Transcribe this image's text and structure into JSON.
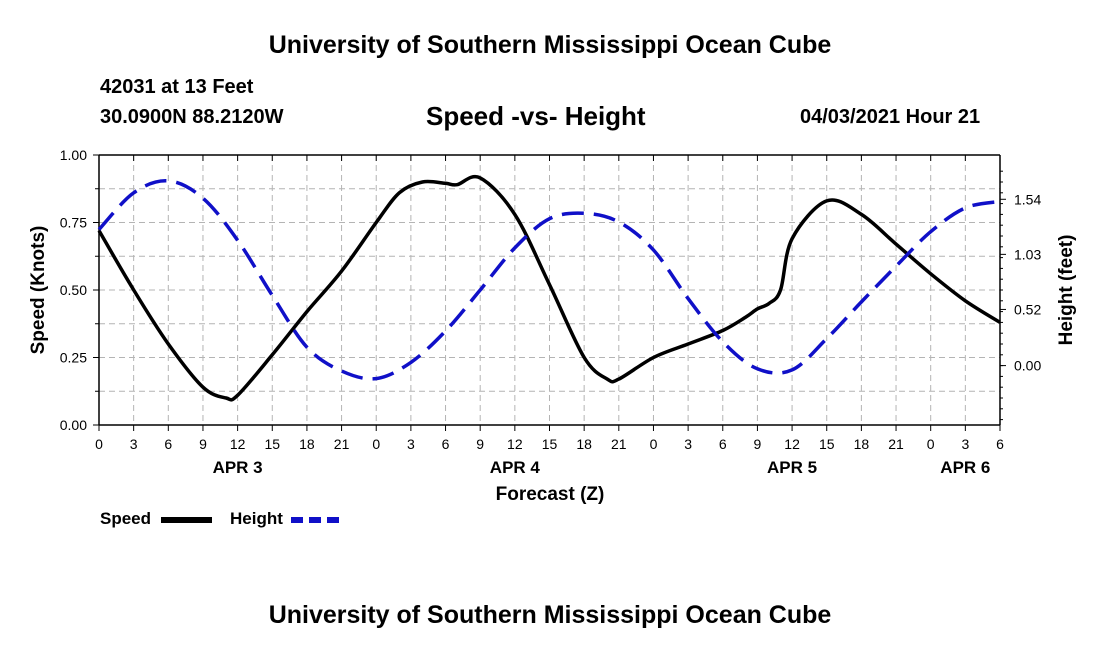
{
  "header": {
    "title": "University of Southern Mississippi Ocean Cube",
    "station": "42031 at 13 Feet",
    "coords": "30.0900N  88.2120W",
    "subtitle": "Speed -vs- Height",
    "datetime": "04/03/2021 Hour 21"
  },
  "footer": {
    "title": "University of Southern Mississippi Ocean Cube"
  },
  "legend": {
    "speed_label": "Speed",
    "height_label": "Height"
  },
  "colors": {
    "speed": "#000000",
    "height": "#1010c8",
    "grid": "#b4b4b4"
  },
  "chart_data": {
    "type": "line",
    "title": "Speed -vs- Height",
    "xlabel": "Forecast (Z)",
    "ylabel": "Speed (Knots)",
    "y2label": "Height (feet)",
    "x_unit": "hours from APR 3 00Z",
    "xlim": [
      0,
      78
    ],
    "ylim": [
      0,
      1.0
    ],
    "y2lim": [
      -0.55,
      1.95
    ],
    "x_ticks": [
      0,
      3,
      6,
      9,
      12,
      15,
      18,
      21,
      24,
      27,
      30,
      33,
      36,
      39,
      42,
      45,
      48,
      51,
      54,
      57,
      60,
      63,
      66,
      69,
      72,
      75,
      78
    ],
    "x_tick_labels": [
      "0",
      "3",
      "6",
      "9",
      "12",
      "15",
      "18",
      "21",
      "0",
      "3",
      "6",
      "9",
      "12",
      "15",
      "18",
      "21",
      "0",
      "3",
      "6",
      "9",
      "12",
      "15",
      "18",
      "21",
      "0",
      "3",
      "6"
    ],
    "date_labels": [
      {
        "x": 12,
        "label": "APR 3"
      },
      {
        "x": 36,
        "label": "APR 4"
      },
      {
        "x": 60,
        "label": "APR 5"
      },
      {
        "x": 75,
        "label": "APR 6"
      }
    ],
    "y_ticks": [
      0.0,
      0.25,
      0.5,
      0.75,
      1.0
    ],
    "y_tick_labels": [
      "0.00",
      "0.25",
      "0.50",
      "0.75",
      "1.00"
    ],
    "y2_ticks": [
      0.0,
      0.52,
      1.03,
      1.54
    ],
    "y2_tick_labels": [
      "0.00",
      "0.52",
      "1.03",
      "1.54"
    ],
    "grid": true,
    "series": [
      {
        "name": "Speed",
        "axis": "left",
        "style": "solid",
        "x": [
          0,
          3,
          6,
          9,
          11,
          12,
          15,
          18,
          21,
          24,
          26,
          28,
          30,
          31,
          33,
          36,
          39,
          42,
          44,
          45,
          48,
          51,
          54,
          56,
          57,
          58,
          59,
          60,
          63,
          66,
          69,
          72,
          75,
          78
        ],
        "values": [
          0.72,
          0.5,
          0.3,
          0.14,
          0.1,
          0.11,
          0.26,
          0.42,
          0.57,
          0.75,
          0.86,
          0.9,
          0.895,
          0.89,
          0.915,
          0.78,
          0.52,
          0.25,
          0.17,
          0.17,
          0.25,
          0.3,
          0.35,
          0.4,
          0.43,
          0.45,
          0.5,
          0.69,
          0.83,
          0.78,
          0.67,
          0.56,
          0.46,
          0.38
        ]
      },
      {
        "name": "Height",
        "axis": "right",
        "style": "dashed",
        "x": [
          0,
          3,
          6,
          9,
          12,
          15,
          18,
          21,
          24,
          27,
          30,
          33,
          36,
          39,
          42,
          45,
          48,
          51,
          54,
          57,
          60,
          63,
          66,
          69,
          72,
          75,
          78
        ],
        "values": [
          1.26,
          1.6,
          1.71,
          1.55,
          1.16,
          0.65,
          0.17,
          -0.05,
          -0.12,
          0.03,
          0.32,
          0.7,
          1.09,
          1.36,
          1.41,
          1.33,
          1.07,
          0.62,
          0.22,
          -0.03,
          -0.04,
          0.25,
          0.59,
          0.92,
          1.24,
          1.46,
          1.52
        ]
      }
    ]
  }
}
